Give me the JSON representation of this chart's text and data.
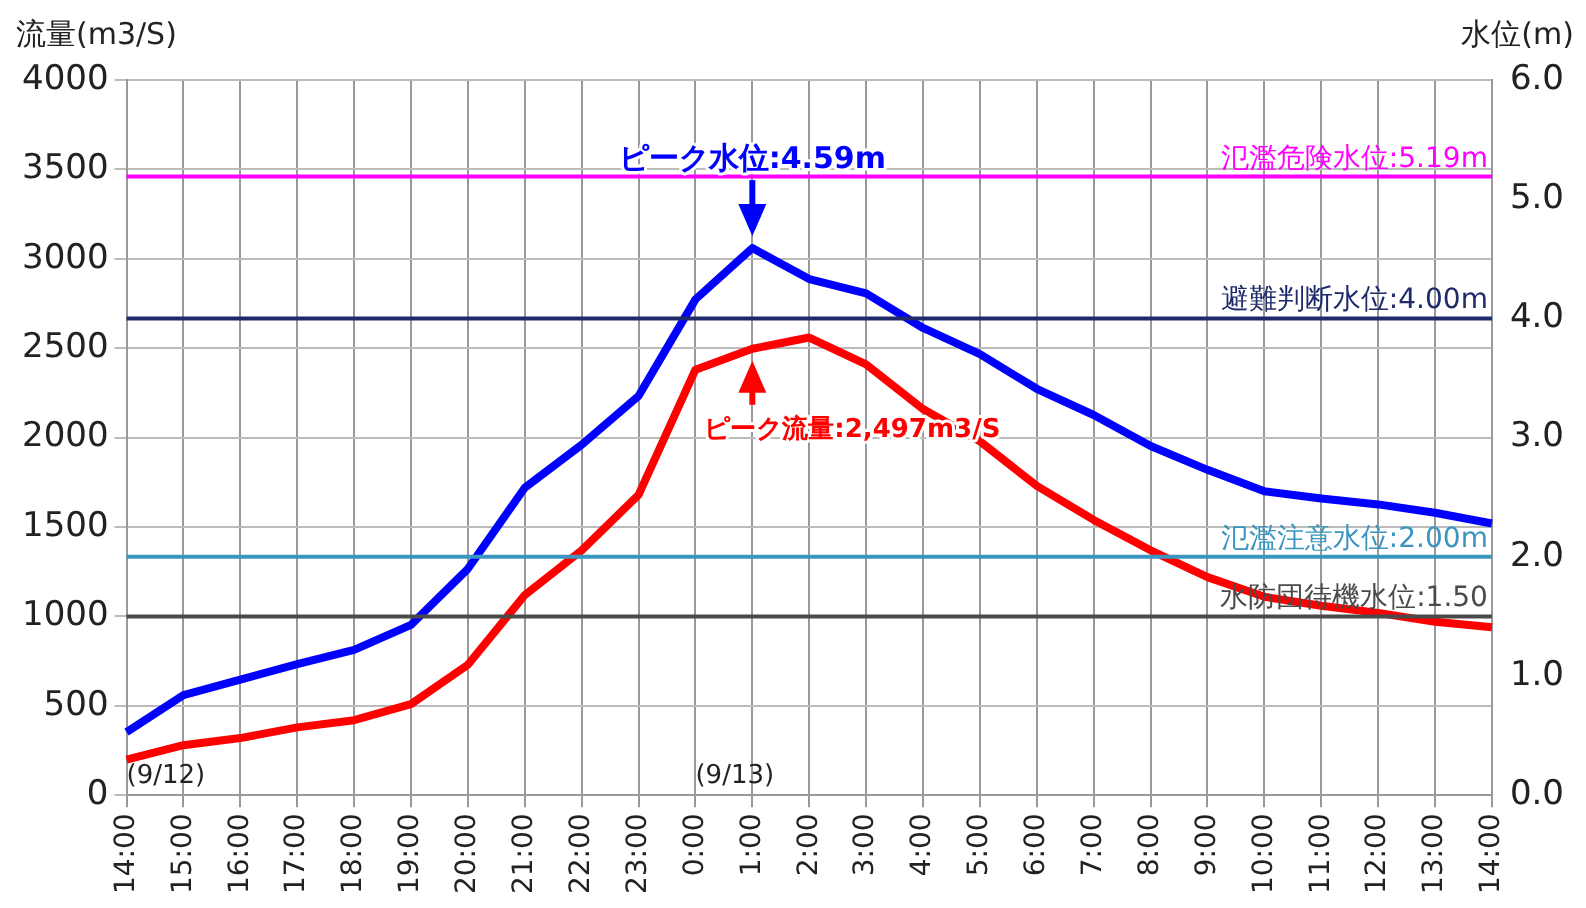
{
  "chart_data": {
    "type": "line",
    "ylabel": "流量(m3/S)",
    "y2label": "水位(m)",
    "categories": [
      "14:00",
      "15:00",
      "16:00",
      "17:00",
      "18:00",
      "19:00",
      "20:00",
      "21:00",
      "22:00",
      "23:00",
      "0:00",
      "1:00",
      "2:00",
      "3:00",
      "4:00",
      "5:00",
      "6:00",
      "7:00",
      "8:00",
      "9:00",
      "10:00",
      "11:00",
      "12:00",
      "13:00",
      "14:00"
    ],
    "series": [
      {
        "color": "#0000ff",
        "axis": "y2",
        "values": [
          0.53,
          0.84,
          0.97,
          1.1,
          1.22,
          1.43,
          1.9,
          2.58,
          2.94,
          3.35,
          4.16,
          4.59,
          4.33,
          4.21,
          3.92,
          3.7,
          3.41,
          3.19,
          2.93,
          2.73,
          2.55,
          2.49,
          2.44,
          2.37,
          2.28
        ]
      },
      {
        "color": "#ff0000",
        "axis": "y",
        "values": [
          200,
          280,
          320,
          380,
          420,
          510,
          730,
          1120,
          1370,
          1680,
          2380,
          2497,
          2560,
          2410,
          2160,
          1980,
          1730,
          1540,
          1370,
          1220,
          1110,
          1060,
          1020,
          970,
          940
        ]
      }
    ],
    "ylim": [
      0,
      4000
    ],
    "yticks": [
      0,
      500,
      1000,
      1500,
      2000,
      2500,
      3000,
      3500,
      4000
    ],
    "y2lim": [
      0,
      6
    ],
    "y2ticks": [
      {
        "value": 0,
        "label": "0.0"
      },
      {
        "value": 1,
        "label": "1.0"
      },
      {
        "value": 2,
        "label": "2.0"
      },
      {
        "value": 3,
        "label": "3.0"
      },
      {
        "value": 4,
        "label": "4.0"
      },
      {
        "value": 5,
        "label": "5.0"
      },
      {
        "value": 6,
        "label": "6.0"
      }
    ],
    "ref_lines": [
      {
        "axis": "y2",
        "value": 5.19,
        "label": "氾濫危険水位:5.19m",
        "color": "#ff00ff"
      },
      {
        "axis": "y2",
        "value": 4.0,
        "label": "避難判断水位:4.00m",
        "color": "#1f2a6b"
      },
      {
        "axis": "y2",
        "value": 2.0,
        "label": "氾濫注意水位:2.00m",
        "color": "#3a96c0"
      },
      {
        "axis": "y2",
        "value": 1.5,
        "label": "水防団待機水位:1.50",
        "color": "#4a4a4a"
      }
    ],
    "annotations": [
      "ピーク水位:4.59m",
      {
        "text": "ピーク流量:2,497m3/S",
        "x": "1:00",
        "y": 2497
      },
      "(9/12)",
      "(9/13)"
    ],
    "grid": true,
    "legend": false,
    "marker": "none",
    "line_style": "solid"
  }
}
